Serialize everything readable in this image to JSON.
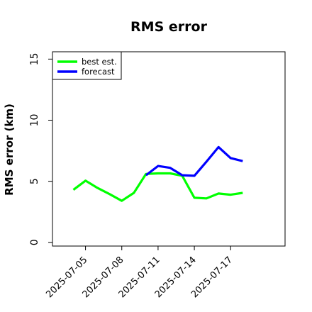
{
  "chart_data": {
    "type": "line",
    "title": "RMS error",
    "xlabel": "",
    "ylabel": "RMS error (km)",
    "x": [
      "2025-07-04",
      "2025-07-05",
      "2025-07-06",
      "2025-07-07",
      "2025-07-08",
      "2025-07-09",
      "2025-07-10",
      "2025-07-11",
      "2025-07-12",
      "2025-07-13",
      "2025-07-14",
      "2025-07-15",
      "2025-07-16",
      "2025-07-17",
      "2025-07-18"
    ],
    "xticks": [
      "2025-07-05",
      "2025-07-08",
      "2025-07-11",
      "2025-07-14",
      "2025-07-17"
    ],
    "yticks": [
      0,
      5,
      10,
      15
    ],
    "ylim": [
      -0.3,
      15.6
    ],
    "series": [
      {
        "name": "best est.",
        "color": "#00ff00",
        "values": [
          4.3,
          5.05,
          4.45,
          3.95,
          3.4,
          4.05,
          5.6,
          5.65,
          5.65,
          5.45,
          3.65,
          3.6,
          4.0,
          3.9,
          4.05
        ]
      },
      {
        "name": "forecast",
        "color": "#0000ff",
        "values": [
          null,
          null,
          null,
          null,
          null,
          null,
          5.5,
          6.25,
          6.1,
          5.5,
          5.45,
          6.6,
          7.8,
          6.9,
          6.65
        ]
      }
    ],
    "legend": "top-left",
    "grid": false
  }
}
